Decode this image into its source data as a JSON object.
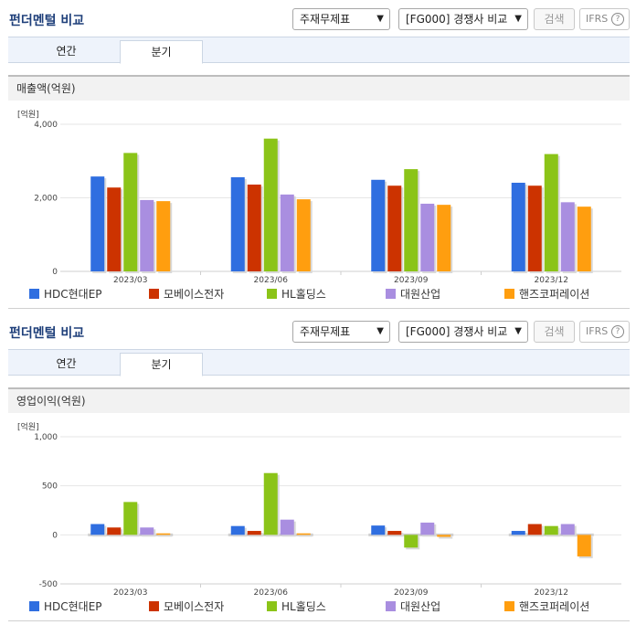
{
  "colors": {
    "accent_title": "#1e3f7a",
    "series": [
      "#2f6ee0",
      "#cc3300",
      "#8bc418",
      "#a98ee0",
      "#ff9e0f"
    ]
  },
  "header": {
    "title": "펀더멘털 비교",
    "statement_select": "주재무제표",
    "peer_select": "[FG000] 경쟁사 비교",
    "search_button": "검색",
    "ifrs_label": "IFRS",
    "help_icon": "?"
  },
  "tabs": [
    {
      "label": "연간",
      "active": false
    },
    {
      "label": "분기",
      "active": true
    }
  ],
  "legend": [
    "HDC현대EP",
    "모베이스전자",
    "HL홀딩스",
    "대원산업",
    "핸즈코퍼레이션"
  ],
  "panels": [
    {
      "metric_label": "매출액(억원)",
      "unit_label": "[억원]",
      "tick_labels": [
        "4,000",
        "2,000",
        "0"
      ]
    },
    {
      "metric_label": "영업이익(억원)",
      "unit_label": "[억원]",
      "tick_labels": [
        "1,000",
        "500",
        "0",
        "-500"
      ]
    }
  ],
  "chart_data": [
    {
      "type": "bar",
      "title": "매출액(억원)",
      "ylabel": "[억원]",
      "categories": [
        "2023/03",
        "2023/06",
        "2023/09",
        "2023/12"
      ],
      "ylim": [
        0,
        4000
      ],
      "yticks": [
        0,
        2000,
        4000
      ],
      "grid": true,
      "legend_position": "bottom",
      "series": [
        {
          "name": "HDC현대EP",
          "values": [
            2580,
            2560,
            2490,
            2410
          ]
        },
        {
          "name": "모베이스전자",
          "values": [
            2280,
            2360,
            2330,
            2330
          ]
        },
        {
          "name": "HL홀딩스",
          "values": [
            3220,
            3610,
            2780,
            3190
          ]
        },
        {
          "name": "대원산업",
          "values": [
            1940,
            2090,
            1840,
            1880
          ]
        },
        {
          "name": "핸즈코퍼레이션",
          "values": [
            1910,
            1960,
            1810,
            1760
          ]
        }
      ]
    },
    {
      "type": "bar",
      "title": "영업이익(억원)",
      "ylabel": "[억원]",
      "categories": [
        "2023/03",
        "2023/06",
        "2023/09",
        "2023/12"
      ],
      "ylim": [
        -500,
        1000
      ],
      "yticks": [
        -500,
        0,
        500,
        1000
      ],
      "grid": true,
      "legend_position": "bottom",
      "series": [
        {
          "name": "HDC현대EP",
          "values": [
            110,
            90,
            95,
            40
          ]
        },
        {
          "name": "모베이스전자",
          "values": [
            75,
            40,
            40,
            110
          ]
        },
        {
          "name": "HL홀딩스",
          "values": [
            335,
            630,
            -130,
            90
          ]
        },
        {
          "name": "대원산업",
          "values": [
            75,
            155,
            125,
            110
          ]
        },
        {
          "name": "핸즈코퍼레이션",
          "values": [
            15,
            15,
            -20,
            -220
          ]
        }
      ]
    }
  ]
}
